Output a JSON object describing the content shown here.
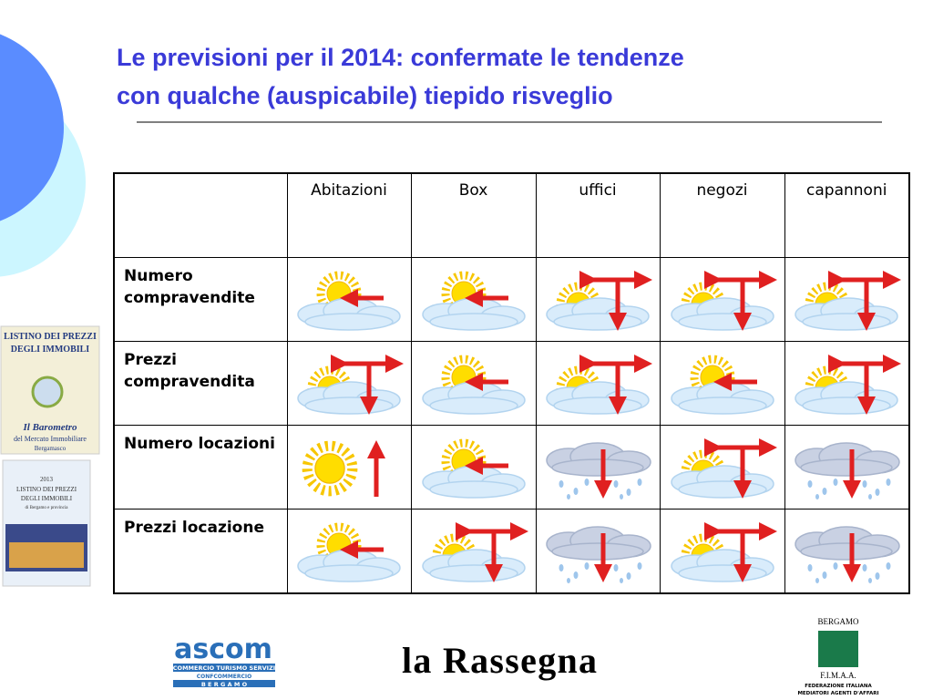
{
  "title": [
    "Le previsioni per il 2014: confermate le tendenze",
    "con qualche (auspicabile) tiepido risveglio"
  ],
  "table": {
    "columns": [
      "Abitazioni",
      "Box",
      "uffici",
      "negozi",
      "capannoni"
    ],
    "rows": [
      "Numero compravendite",
      "Prezzi compravendita",
      "Numero locazioni",
      "Prezzi locazione"
    ]
  },
  "covers": {
    "first": [
      "LISTINO DEI PREZZI",
      "DEGLI IMMOBILI",
      "Il Barometro",
      "del Mercato Immobiliare",
      "Bergamasco"
    ],
    "second": [
      "2013",
      "LISTINO DEI PREZZI",
      "DEGLI IMMOBILI",
      "di Bergamo e provincia"
    ]
  },
  "logos": {
    "ascom": [
      "ascom",
      "COMMERCIO TURISMO SERVIZI",
      "CONFCOMMERCIO",
      "B E R G A M O"
    ],
    "rassegna": "la Rassegna",
    "fimaa": [
      "BERGAMO",
      "F.I.M.A.A.",
      "FEDERAZIONE ITALIANA",
      "MEDIATORI AGENTI D'AFFARI"
    ]
  }
}
